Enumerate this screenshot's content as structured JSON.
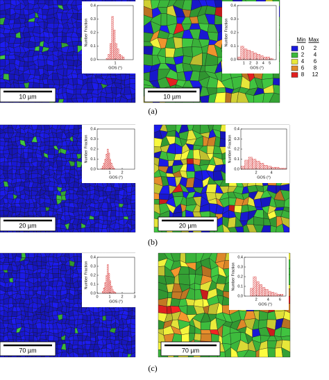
{
  "chart_data": [
    {
      "type": "histogram",
      "x_label": "GOS (°)",
      "y_label": "Number Fraction",
      "color": "#d62020",
      "bins": [
        0.5,
        0.6,
        0.7,
        0.8,
        0.9,
        1.0,
        1.1,
        1.2,
        1.3,
        1.4,
        1.5
      ],
      "counts": [
        0.01,
        0.04,
        0.12,
        0.32,
        0.22,
        0.12,
        0.08,
        0.04,
        0.03,
        0.02
      ],
      "xlim": [
        0,
        2
      ],
      "xticks": [
        1
      ],
      "ylim": [
        0,
        0.4
      ],
      "yticks": [
        {
          "value": 0,
          "label": "0.0"
        },
        0.1,
        0.2,
        0.3,
        0.4
      ]
    },
    {
      "type": "histogram",
      "x_label": "GOS (°)",
      "y_label": "Number Fraction",
      "color": "#d62020",
      "bins": [
        0,
        0.5,
        1.0,
        1.5,
        2.0,
        2.5,
        3.0,
        3.5,
        4.0,
        4.5,
        5.0,
        5.5
      ],
      "counts": [
        0.02,
        0.1,
        0.08,
        0.07,
        0.06,
        0.05,
        0.04,
        0.03,
        0.02,
        0.02,
        0.01
      ],
      "xlim": [
        0,
        6
      ],
      "xticks": [
        1,
        2,
        3,
        4,
        5
      ],
      "ylim": [
        0,
        0.4
      ],
      "yticks": [
        {
          "value": 0,
          "label": "0.0"
        },
        0.1,
        0.2,
        0.3,
        0.4
      ]
    },
    {
      "type": "histogram",
      "x_label": "GOS (°)",
      "y_label": "Number Fraction",
      "color": "#d62020",
      "bins": [
        0.3,
        0.4,
        0.5,
        0.6,
        0.7,
        0.8,
        0.9,
        1.0,
        1.1,
        1.2,
        1.3,
        1.4
      ],
      "counts": [
        0.01,
        0.03,
        0.06,
        0.1,
        0.15,
        0.2,
        0.16,
        0.1,
        0.06,
        0.03,
        0.01
      ],
      "xlim": [
        0,
        3
      ],
      "xticks": [
        1,
        2
      ],
      "ylim": [
        0,
        0.4
      ],
      "yticks": [
        {
          "value": 0,
          "label": "0.0"
        },
        0.1,
        0.2,
        0.3,
        0.4
      ]
    },
    {
      "type": "histogram",
      "x_label": "GOS (°)",
      "y_label": "Number Fraction",
      "color": "#d62020",
      "bins": [
        0,
        0.5,
        1.0,
        1.5,
        2.0,
        2.5,
        3.0,
        3.5,
        4.0,
        4.5,
        5.0,
        5.5,
        6.0
      ],
      "counts": [
        0.03,
        0.09,
        0.12,
        0.1,
        0.08,
        0.06,
        0.04,
        0.03,
        0.02,
        0.02,
        0.01,
        0.01
      ],
      "xlim": [
        0,
        6
      ],
      "xticks": [
        2,
        4
      ],
      "ylim": [
        0,
        0.4
      ],
      "yticks": [
        {
          "value": 0,
          "label": "0.0"
        },
        0.1,
        0.2,
        0.3,
        0.4
      ]
    },
    {
      "type": "histogram",
      "x_label": "GOS (°)",
      "y_label": "Number Fraction",
      "color": "#d62020",
      "bins": [
        0.4,
        0.5,
        0.6,
        0.7,
        0.8,
        0.9,
        1.0,
        1.1,
        1.2,
        1.3,
        1.4,
        1.5
      ],
      "counts": [
        0.02,
        0.06,
        0.12,
        0.2,
        0.32,
        0.22,
        0.14,
        0.08,
        0.04,
        0.02,
        0.01
      ],
      "xlim": [
        0,
        3
      ],
      "xticks": [
        0,
        1,
        2,
        3
      ],
      "ylim": [
        0,
        0.4
      ],
      "yticks": [
        {
          "value": 0,
          "label": "0.0"
        },
        0.1,
        0.2,
        0.3,
        0.4
      ]
    },
    {
      "type": "histogram",
      "x_label": "GOS (°)",
      "y_label": "Number Fraction",
      "color": "#d62020",
      "bins": [
        1.0,
        1.5,
        2.0,
        2.5,
        3.0,
        3.5,
        4.0,
        4.5,
        5.0,
        5.5,
        6.0,
        6.5
      ],
      "counts": [
        0.08,
        0.2,
        0.15,
        0.12,
        0.09,
        0.07,
        0.05,
        0.04,
        0.03,
        0.02,
        0.02
      ],
      "xlim": [
        0,
        7
      ],
      "xticks": [
        2,
        4,
        6
      ],
      "ylim": [
        0,
        0.4
      ],
      "yticks": [
        {
          "value": 0,
          "label": "0.0"
        },
        0.1,
        0.2,
        0.3,
        0.4
      ]
    }
  ],
  "panels": {
    "labels": [
      "(a)",
      "(b)",
      "(c)"
    ],
    "scale_bars": [
      "10 µm",
      "10 µm",
      "20 µm",
      "20 µm",
      "70 µm",
      "70 µm"
    ]
  },
  "legend": {
    "header": [
      "Min",
      "Max"
    ],
    "rows": [
      {
        "color": "#1a1adc",
        "min": 0,
        "max": 2
      },
      {
        "color": "#3cb83c",
        "min": 2,
        "max": 4
      },
      {
        "color": "#e8e83a",
        "min": 4,
        "max": 6
      },
      {
        "color": "#e08a2a",
        "min": 6,
        "max": 8
      },
      {
        "color": "#e02020",
        "min": 8,
        "max": 12
      }
    ]
  }
}
